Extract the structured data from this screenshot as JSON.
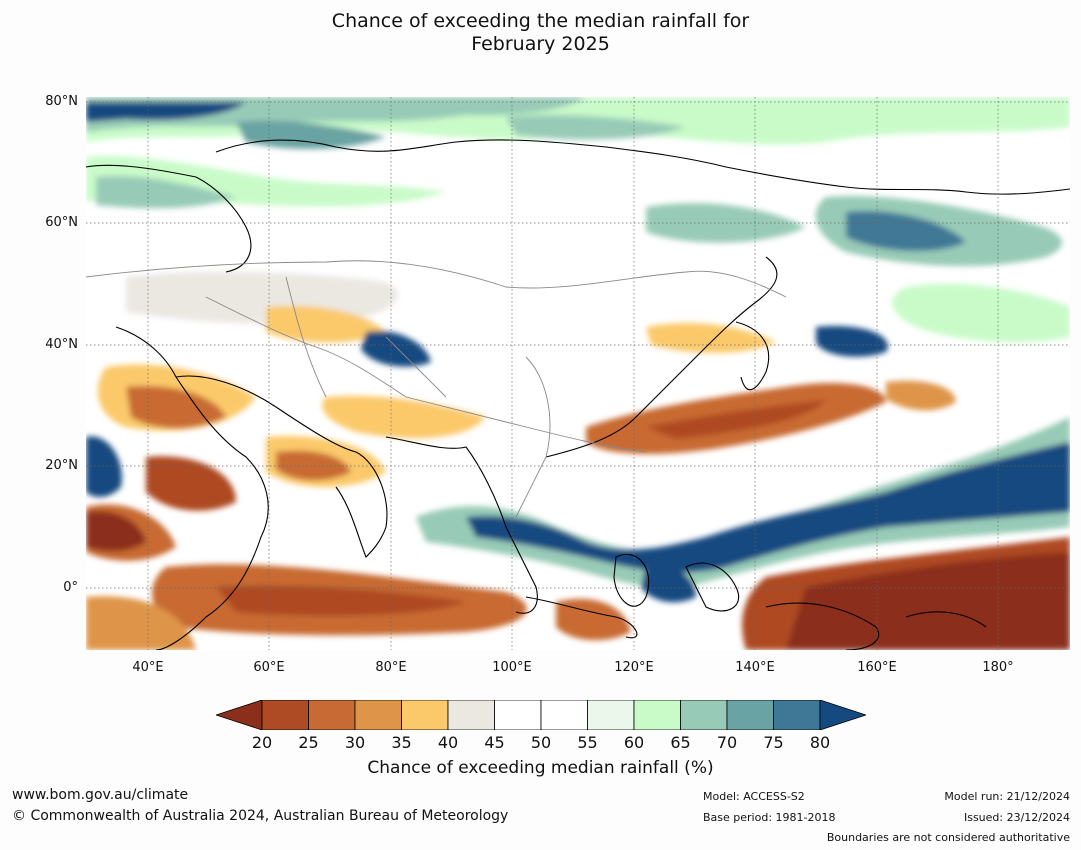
{
  "title_line1": "Chance of exceeding the median rainfall for",
  "title_line2": "February 2025",
  "lat_labels": [
    "80°N",
    "60°N",
    "40°N",
    "20°N",
    "0°"
  ],
  "lon_labels": [
    "40°E",
    "60°E",
    "80°E",
    "100°E",
    "120°E",
    "140°E",
    "160°E",
    "180°"
  ],
  "colorbar": {
    "ticks": [
      "20",
      "25",
      "30",
      "35",
      "40",
      "45",
      "50",
      "55",
      "60",
      "65",
      "70",
      "75",
      "80"
    ],
    "colors": [
      "#8b2f1c",
      "#ae4a24",
      "#c86a33",
      "#df9549",
      "#fbc96a",
      "#ebe8e2",
      "#ffffff",
      "#ffffff",
      "#eaf7ea",
      "#c9fbc9",
      "#98cbb7",
      "#6aa3a3",
      "#3f7896",
      "#144a80"
    ],
    "label": "Chance of exceeding median rainfall (%)"
  },
  "footer": {
    "website": "www.bom.gov.au/climate",
    "copyright": "© Commonwealth of Australia 2024, Australian Bureau of Meteorology",
    "model": "Model: ACCESS-S2",
    "base_period": "Base period: 1981-2018",
    "model_run": "Model run: 21/12/2024",
    "issued": "Issued: 23/12/2024",
    "disclaimer": "Boundaries are not considered authoritative"
  }
}
